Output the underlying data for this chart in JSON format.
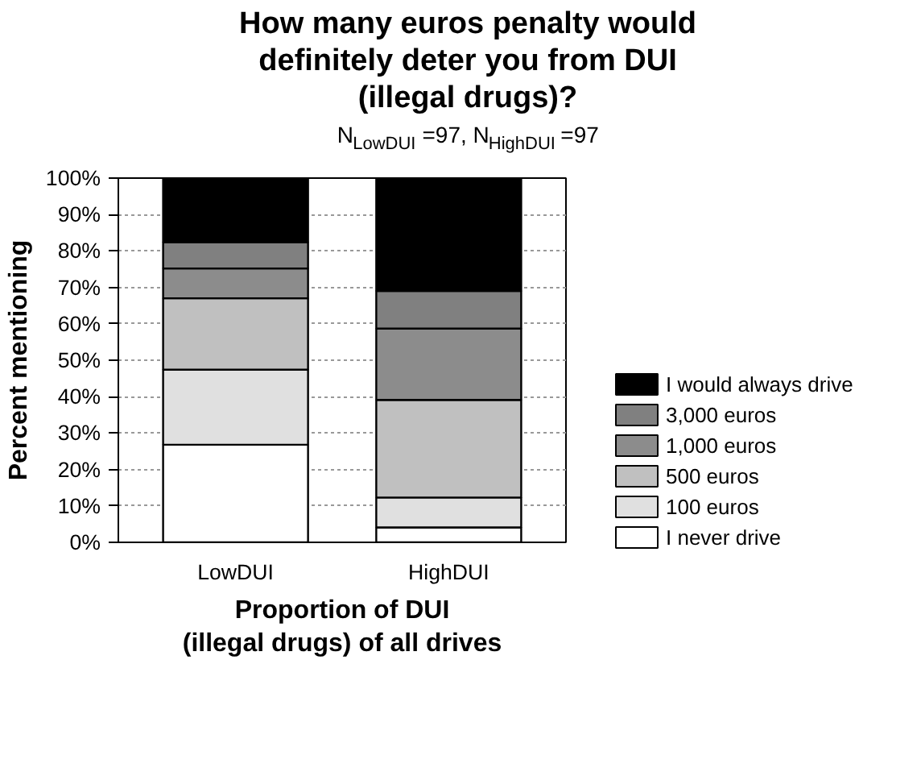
{
  "chart_data": {
    "type": "bar",
    "stacked": true,
    "title": "How many euros penalty would\ndefinitely deter you from DUI\n(illegal drugs)?",
    "subtitle": "N$_{LowDUI}$=97, N$_{HighDUI}$=97",
    "xlabel": "Proportion of DUI\n(illegal drugs) of all drives",
    "ylabel": "Percent mentioning",
    "categories": [
      "LowDUI",
      "HighDUI"
    ],
    "series": [
      {
        "name": "I never drive",
        "color": "#ffffff",
        "values": [
          26.8,
          4.1
        ]
      },
      {
        "name": "100 euros",
        "color": "#e0e0e0",
        "values": [
          20.6,
          8.2
        ]
      },
      {
        "name": "500 euros",
        "color": "#c0c0c0",
        "values": [
          19.6,
          26.8
        ]
      },
      {
        "name": "1,000 euros",
        "color": "#8c8c8c",
        "values": [
          8.2,
          19.6
        ]
      },
      {
        "name": "3,000 euros",
        "color": "#808080",
        "values": [
          7.2,
          10.3
        ]
      },
      {
        "name": "I would always drive",
        "color": "#000000",
        "values": [
          17.6,
          31.0
        ]
      }
    ],
    "ylim": [
      0,
      100
    ],
    "yticks": [
      {
        "value": 0,
        "label": "0%"
      },
      {
        "value": 10,
        "label": "10%"
      },
      {
        "value": 20,
        "label": "20%"
      },
      {
        "value": 30,
        "label": "30%"
      },
      {
        "value": 40,
        "label": "40%"
      },
      {
        "value": 50,
        "label": "50%"
      },
      {
        "value": 60,
        "label": "60%"
      },
      {
        "value": 70,
        "label": "70%"
      },
      {
        "value": 80,
        "label": "80%"
      },
      {
        "value": 90,
        "label": "90%"
      },
      {
        "value": 100,
        "label": "100%"
      }
    ],
    "grid": "y",
    "legend": "right"
  }
}
